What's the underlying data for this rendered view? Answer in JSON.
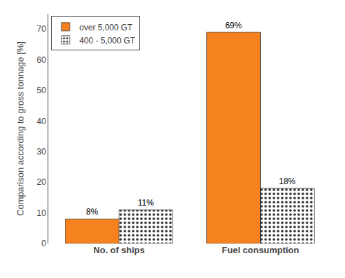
{
  "chart_data": {
    "type": "bar",
    "categories": [
      "No. of ships",
      "Fuel consumption"
    ],
    "series": [
      {
        "name": "over 5,000 GT",
        "color": "#F5821E",
        "values": [
          8,
          69
        ],
        "value_labels": [
          "8%",
          "69%"
        ]
      },
      {
        "name": "400 - 5,000 GT",
        "color": "#4BBFBF",
        "values": [
          11,
          18
        ],
        "value_labels": [
          "11%",
          "18%"
        ]
      }
    ],
    "ylabel": "Comparison according to gross tonnage [%]",
    "ylim": [
      0,
      75
    ],
    "yticks": [
      0,
      10,
      20,
      30,
      40,
      50,
      60,
      70
    ],
    "grid": false,
    "legend": "upper left",
    "data_labels": true
  }
}
